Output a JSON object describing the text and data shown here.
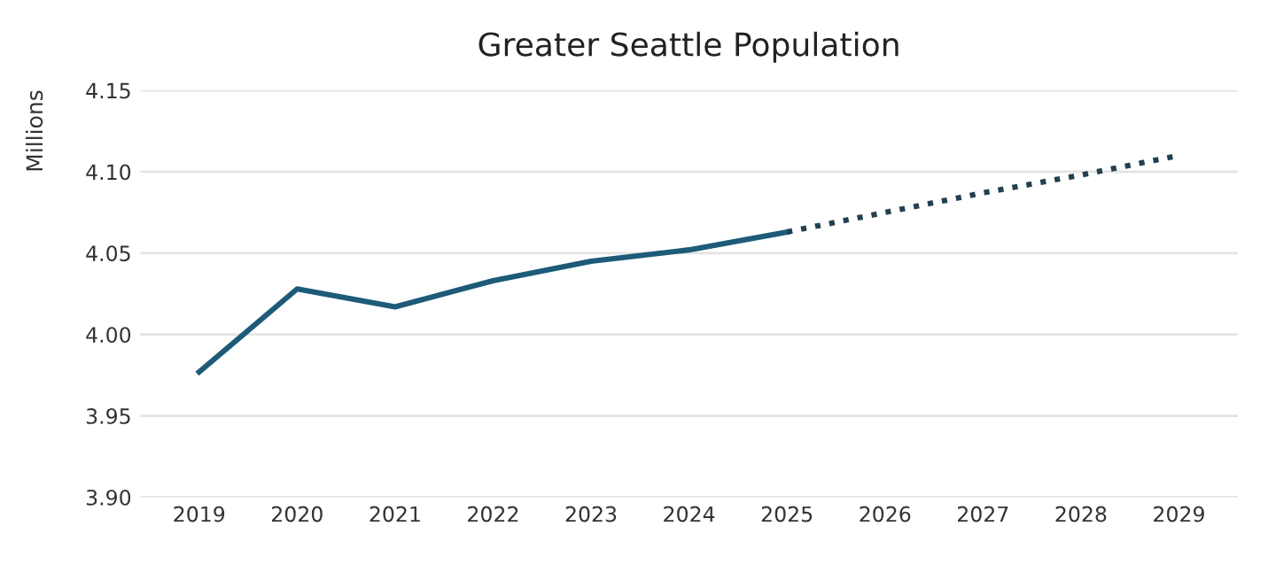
{
  "chart_data": {
    "type": "line",
    "title": "Greater Seattle Population",
    "ylabel": "Millions",
    "categories": [
      "2019",
      "2020",
      "2021",
      "2022",
      "2023",
      "2024",
      "2025",
      "2026",
      "2027",
      "2028",
      "2029"
    ],
    "series": [
      {
        "color": "#1d5b79",
        "line_style": "solid",
        "values": [
          3.977,
          4.028,
          4.017,
          4.033,
          4.045,
          4.052,
          4.063,
          null,
          null,
          null,
          null
        ]
      },
      {
        "color": "#22404f",
        "line_style": "dotted",
        "values": [
          null,
          null,
          null,
          null,
          null,
          null,
          4.063,
          4.075,
          4.087,
          4.098,
          4.11
        ]
      }
    ],
    "ylim": [
      3.9,
      4.15
    ],
    "yticks": [
      {
        "value": 3.9,
        "label": "3.90"
      },
      {
        "value": 3.95,
        "label": "3.95"
      },
      {
        "value": 4.0,
        "label": "4.00"
      },
      {
        "value": 4.05,
        "label": "4.05"
      },
      {
        "value": 4.1,
        "label": "4.10"
      },
      {
        "value": 4.15,
        "label": "4.15"
      }
    ],
    "grid": "y",
    "marker": "none"
  }
}
